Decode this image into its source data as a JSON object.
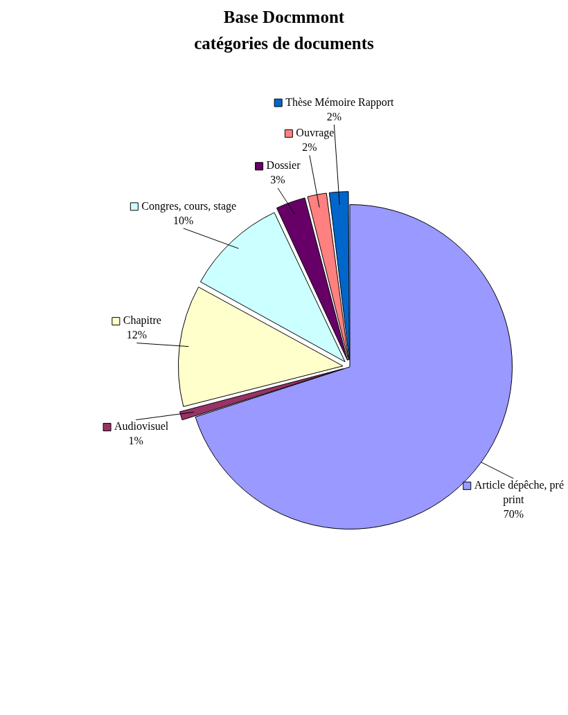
{
  "chart_data": {
    "type": "pie",
    "title": "Base Docmmont\ncatégories de documents",
    "categories": [
      "Article dépêche, pré print",
      "Audiovisuel",
      "Chapitre",
      "Congres, cours, stage",
      "Dossier",
      "Ouvrage",
      "Thèse Mémoire Rapport"
    ],
    "values": [
      70,
      1,
      12,
      10,
      3,
      2,
      2
    ],
    "colors": [
      "#9999ff",
      "#993366",
      "#ffffcc",
      "#ccffff",
      "#660066",
      "#ff8080",
      "#0066cc"
    ],
    "value_labels": [
      "70%",
      "1%",
      "12%",
      "10%",
      "3%",
      "2%",
      "2%"
    ],
    "legend": true
  }
}
